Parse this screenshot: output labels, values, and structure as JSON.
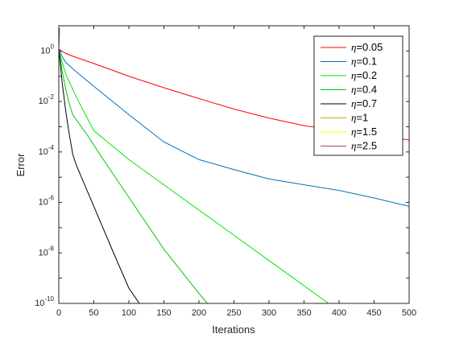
{
  "chart_data": {
    "type": "line",
    "title": "",
    "xlabel": "Iterations",
    "ylabel": "Error",
    "xlim": [
      0,
      500
    ],
    "ylim": [
      1e-10,
      10
    ],
    "yscale": "log",
    "grid": false,
    "legend_position": "top-right",
    "xticks": [
      0,
      50,
      100,
      150,
      200,
      250,
      300,
      350,
      400,
      450,
      500
    ],
    "xtick_labels": [
      "0",
      "50",
      "100",
      "150",
      "200",
      "250",
      "300",
      "350",
      "400",
      "450",
      "500"
    ],
    "yticks": [
      {
        "value": 1,
        "base": "10",
        "exp": "0"
      },
      {
        "value": 0.01,
        "base": "10",
        "exp": "-2"
      },
      {
        "value": 0.0001,
        "base": "10",
        "exp": "-4"
      },
      {
        "value": 1e-06,
        "base": "10",
        "exp": "-6"
      },
      {
        "value": 1e-08,
        "base": "10",
        "exp": "-8"
      },
      {
        "value": 1e-10,
        "base": "10",
        "exp": "-10"
      }
    ],
    "series": [
      {
        "name": "η=0.05",
        "color": "#ff0000",
        "x": [
          0,
          5,
          10,
          25,
          50,
          100,
          150,
          200,
          250,
          300,
          350,
          400,
          450,
          500
        ],
        "y": [
          1.2,
          0.95,
          0.8,
          0.55,
          0.32,
          0.1,
          0.035,
          0.013,
          0.005,
          0.0022,
          0.0011,
          0.0007,
          0.00045,
          0.0003
        ]
      },
      {
        "name": "η=0.1",
        "color": "#0072bd",
        "x": [
          0,
          5,
          10,
          25,
          50,
          100,
          150,
          200,
          250,
          300,
          350,
          400,
          450,
          500
        ],
        "y": [
          1.2,
          0.6,
          0.35,
          0.15,
          0.04,
          0.003,
          0.00025,
          5e-05,
          2e-05,
          8.5e-06,
          5e-06,
          3e-06,
          1.5e-06,
          7e-07
        ]
      },
      {
        "name": "η=0.2",
        "color": "#00e600",
        "x": [
          0,
          5,
          10,
          25,
          50,
          100,
          150,
          200,
          250,
          300,
          350,
          400,
          435
        ],
        "y": [
          1.2,
          0.35,
          0.12,
          0.015,
          0.0007,
          5e-05,
          5e-06,
          5e-07,
          5e-08,
          5e-09,
          5e-10,
          5e-11,
          1e-10
        ]
      },
      {
        "name": "η=0.4",
        "color": "#00c800",
        "x": [
          0,
          5,
          10,
          15,
          20,
          30,
          40,
          60,
          100,
          150,
          200,
          212
        ],
        "y": [
          1.2,
          0.15,
          0.03,
          0.008,
          0.003,
          0.0012,
          0.0005,
          7e-05,
          1.6e-06,
          1.4e-08,
          2.5e-10,
          1e-10
        ]
      },
      {
        "name": "η=0.7",
        "color": "#000000",
        "x": [
          0,
          5,
          10,
          15,
          20,
          25,
          50,
          75,
          100,
          115
        ],
        "y": [
          1.2,
          0.05,
          0.004,
          0.0005,
          8e-05,
          3e-05,
          7e-07,
          1.6e-08,
          4e-10,
          1e-10
        ]
      },
      {
        "name": "η=1",
        "color": "#d4a500",
        "x": [
          0,
          1
        ],
        "y": [
          1.2,
          8
        ]
      },
      {
        "name": "η=1.5",
        "color": "#ffff00",
        "x": [
          0,
          1
        ],
        "y": [
          1.2,
          8
        ]
      },
      {
        "name": "η=2.5",
        "color": "#a0504a",
        "x": [
          0,
          1
        ],
        "y": [
          1.2,
          8
        ]
      }
    ]
  }
}
